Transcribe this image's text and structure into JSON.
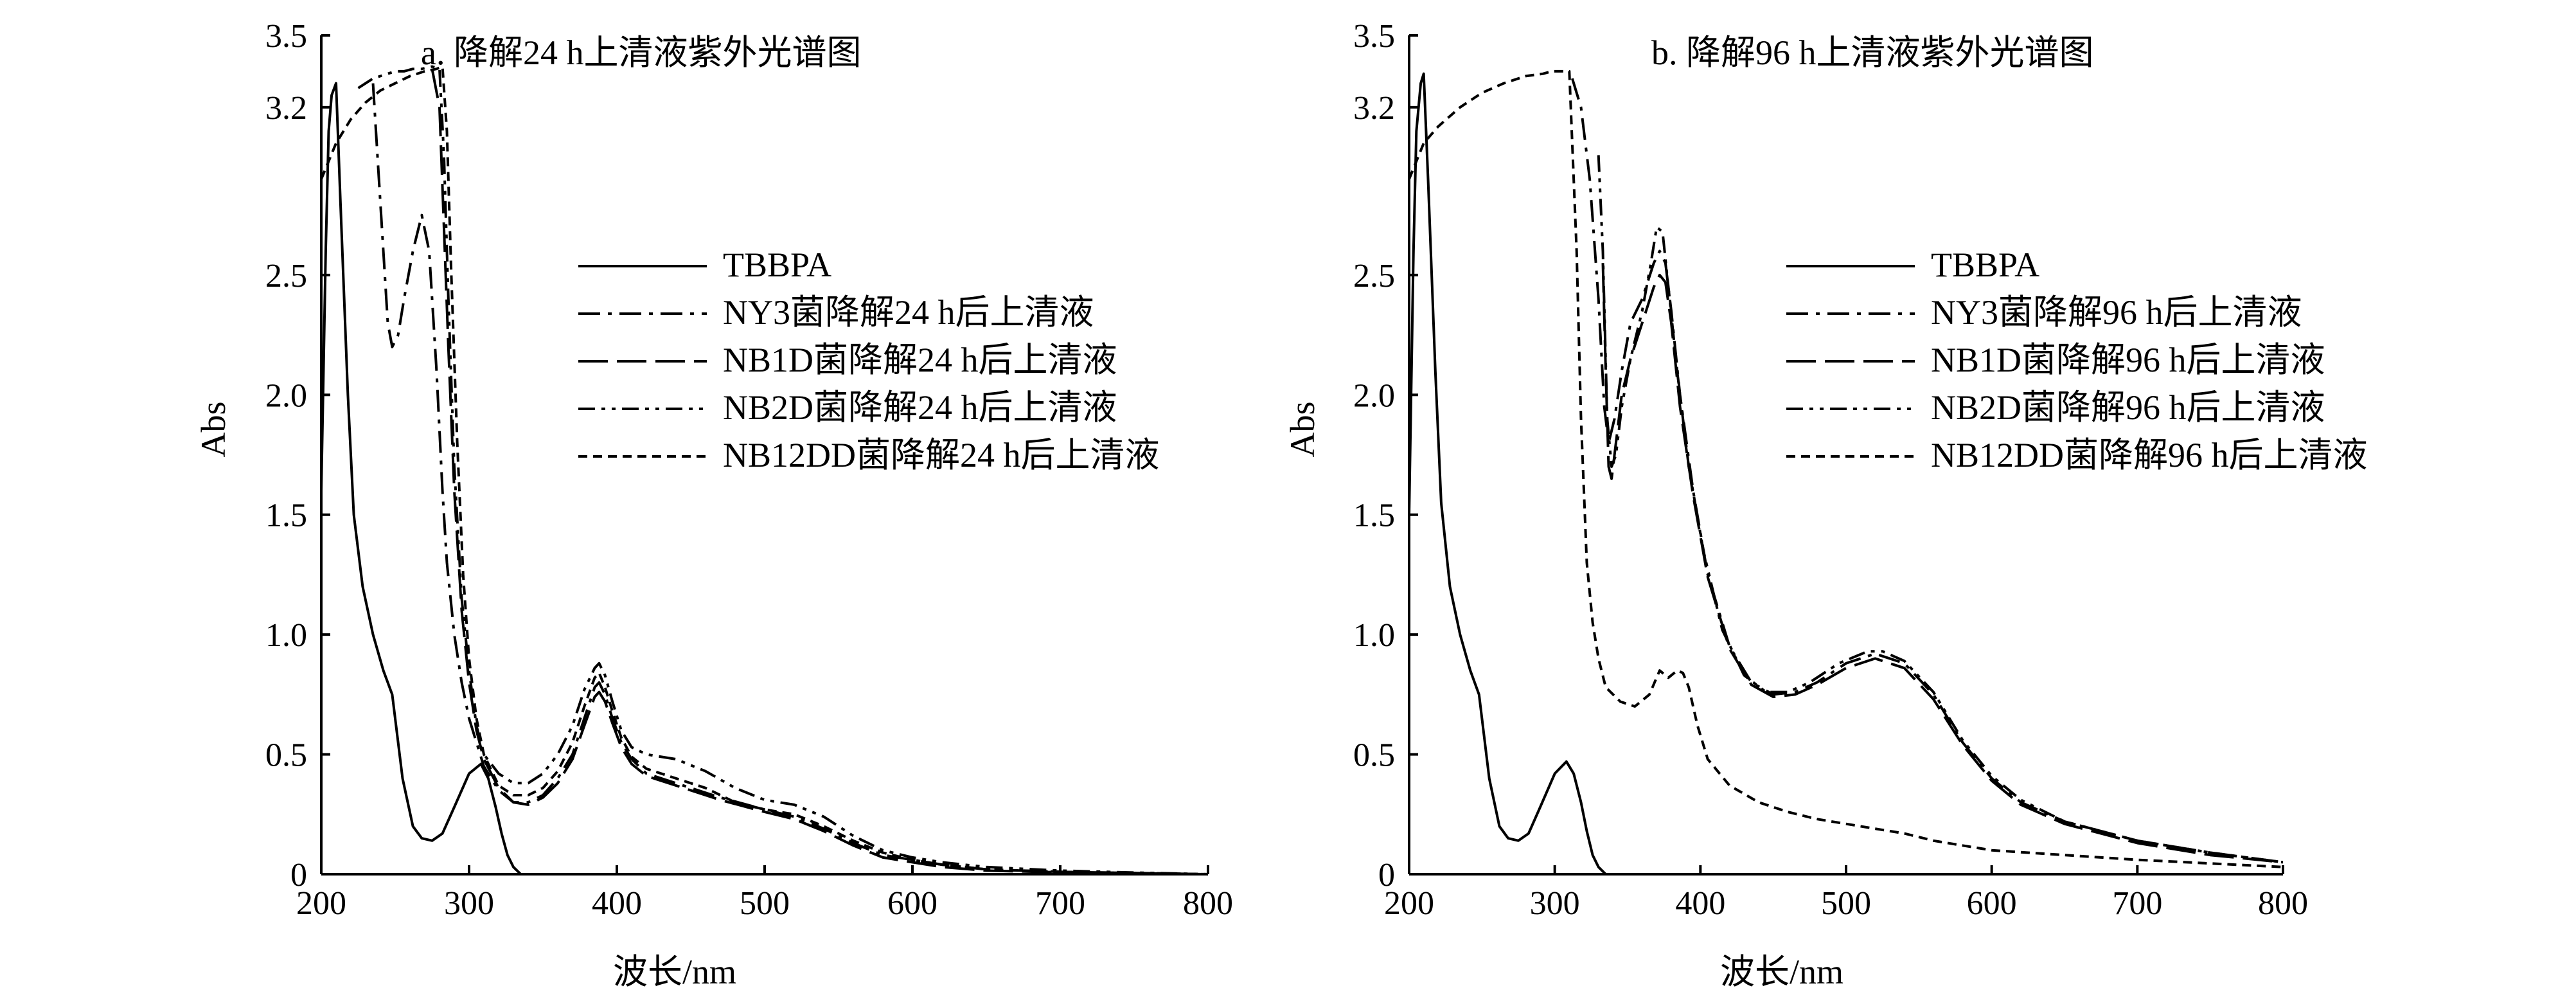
{
  "colors": {
    "line": "#000000",
    "background": "#ffffff"
  },
  "chart_data": [
    {
      "type": "line",
      "panel": "a",
      "title": "a. 降解24 h上清液紫外光谱图",
      "xlabel": "波长/nm",
      "ylabel": "Abs",
      "xlim": [
        200,
        800
      ],
      "ylim": [
        0,
        3.5
      ],
      "xticks": [
        200,
        300,
        400,
        500,
        600,
        700,
        800
      ],
      "yticks": [
        0,
        0.5,
        1.0,
        1.5,
        2.0,
        2.5,
        3.2,
        3.5
      ],
      "ytick_labels": [
        "0",
        "0.5",
        "1.0",
        "1.5",
        "2.0",
        "2.5",
        "3.2",
        "3.5"
      ],
      "legend_position": "center-right",
      "series": [
        {
          "name": "TBBPA",
          "dash": "solid",
          "x": [
            200,
            203,
            205,
            207,
            210,
            213,
            218,
            222,
            228,
            235,
            242,
            248,
            255,
            262,
            268,
            275,
            282,
            290,
            300,
            308,
            313,
            318,
            322,
            326,
            330,
            335,
            345
          ],
          "y": [
            1.6,
            2.6,
            3.1,
            3.25,
            3.3,
            2.8,
            2.0,
            1.5,
            1.2,
            1.0,
            0.85,
            0.75,
            0.4,
            0.2,
            0.15,
            0.14,
            0.17,
            0.28,
            0.42,
            0.46,
            0.4,
            0.28,
            0.17,
            0.08,
            0.03,
            0,
            0
          ]
        },
        {
          "name": "NY3菌降解24 h后上清液",
          "dash": "dashdot",
          "x": [
            235,
            240,
            245,
            248,
            252,
            256,
            262,
            268,
            273,
            278,
            282,
            285,
            290,
            295,
            300,
            305,
            310,
            320,
            330,
            340,
            350,
            360,
            370,
            378,
            385,
            388,
            392,
            397,
            403,
            410,
            420,
            430,
            440,
            450,
            470,
            500,
            520,
            540,
            560,
            580,
            600,
            620,
            650,
            700,
            750,
            800
          ],
          "y": [
            3.3,
            2.8,
            2.3,
            2.2,
            2.25,
            2.4,
            2.6,
            2.75,
            2.6,
            2.1,
            1.6,
            1.3,
            1.0,
            0.8,
            0.65,
            0.55,
            0.45,
            0.35,
            0.3,
            0.3,
            0.33,
            0.4,
            0.5,
            0.65,
            0.78,
            0.8,
            0.75,
            0.65,
            0.55,
            0.48,
            0.42,
            0.4,
            0.38,
            0.36,
            0.32,
            0.27,
            0.24,
            0.19,
            0.13,
            0.08,
            0.06,
            0.04,
            0.02,
            0.01,
            0.005,
            0
          ]
        },
        {
          "name": "NB1D菌降解24 h后上清液",
          "dash": "longdash",
          "x": [
            275,
            280,
            283,
            286,
            290,
            295,
            300,
            305,
            310,
            320,
            330,
            340,
            350,
            360,
            370,
            378,
            385,
            388,
            392,
            397,
            403,
            410,
            420,
            430,
            440,
            450,
            470,
            500,
            520,
            540,
            560,
            580,
            600,
            620,
            650,
            700,
            750,
            800
          ],
          "y": [
            3.36,
            3.2,
            2.7,
            2.2,
            1.6,
            1.1,
            0.8,
            0.6,
            0.48,
            0.36,
            0.3,
            0.29,
            0.32,
            0.38,
            0.48,
            0.62,
            0.74,
            0.76,
            0.72,
            0.63,
            0.53,
            0.46,
            0.41,
            0.39,
            0.37,
            0.35,
            0.31,
            0.26,
            0.23,
            0.18,
            0.12,
            0.07,
            0.05,
            0.03,
            0.015,
            0.008,
            0.004,
            0
          ]
        },
        {
          "name": "NB2D菌降解24 h后上清液",
          "dash": "dashdotdot",
          "x": [
            225,
            230,
            235,
            240,
            245,
            250,
            256,
            262,
            268,
            275,
            280,
            283,
            286,
            290,
            295,
            300,
            305,
            310,
            320,
            330,
            340,
            350,
            360,
            370,
            378,
            385,
            388,
            392,
            397,
            403,
            410,
            420,
            440,
            460,
            480,
            500,
            520,
            540,
            560,
            580,
            600,
            620,
            650,
            700,
            750,
            800
          ],
          "y": [
            3.28,
            3.3,
            3.32,
            3.33,
            3.34,
            3.35,
            3.35,
            3.36,
            3.36,
            3.37,
            3.36,
            3.0,
            2.4,
            1.7,
            1.15,
            0.85,
            0.62,
            0.5,
            0.42,
            0.38,
            0.38,
            0.42,
            0.5,
            0.62,
            0.77,
            0.86,
            0.88,
            0.83,
            0.72,
            0.6,
            0.53,
            0.5,
            0.48,
            0.43,
            0.36,
            0.31,
            0.29,
            0.24,
            0.16,
            0.1,
            0.07,
            0.05,
            0.03,
            0.015,
            0.007,
            0
          ]
        },
        {
          "name": "NB12DD菌降解24 h后上清液",
          "dash": "dashed",
          "x": [
            200,
            210,
            220,
            230,
            240,
            250,
            260,
            270,
            278,
            282,
            285,
            288,
            292,
            296,
            300,
            305,
            310,
            320,
            330,
            340,
            350,
            360,
            370,
            378,
            385,
            388,
            392,
            397,
            403,
            410,
            420,
            440,
            460,
            480,
            500,
            520,
            540,
            560,
            580,
            600,
            620,
            650,
            700,
            750,
            800
          ],
          "y": [
            2.9,
            3.05,
            3.15,
            3.22,
            3.27,
            3.3,
            3.33,
            3.35,
            3.36,
            3.37,
            3.1,
            2.5,
            1.8,
            1.25,
            0.9,
            0.65,
            0.5,
            0.37,
            0.33,
            0.33,
            0.36,
            0.43,
            0.55,
            0.7,
            0.82,
            0.84,
            0.78,
            0.68,
            0.57,
            0.49,
            0.44,
            0.4,
            0.36,
            0.3,
            0.27,
            0.25,
            0.2,
            0.14,
            0.09,
            0.06,
            0.04,
            0.02,
            0.01,
            0.005,
            0
          ]
        }
      ],
      "legend_labels": [
        "TBBPA",
        "NY3菌降解24 h后上清液",
        "NB1D菌降解24 h后上清液",
        "NB2D菌降解24 h后上清液",
        "NB12DD菌降解24 h后上清液"
      ]
    },
    {
      "type": "line",
      "panel": "b",
      "title": "b. 降解96 h上清液紫外光谱图",
      "xlabel": "波长/nm",
      "ylabel": "Abs",
      "xlim": [
        200,
        800
      ],
      "ylim": [
        0,
        3.5
      ],
      "xticks": [
        200,
        300,
        400,
        500,
        600,
        700,
        800
      ],
      "yticks": [
        0,
        0.5,
        1.0,
        1.5,
        2.0,
        2.5,
        3.2,
        3.5
      ],
      "ytick_labels": [
        "0",
        "0.5",
        "1.0",
        "1.5",
        "2.0",
        "2.5",
        "3.2",
        "3.5"
      ],
      "legend_position": "center-right",
      "series": [
        {
          "name": "TBBPA",
          "dash": "solid",
          "x": [
            200,
            203,
            205,
            208,
            210,
            213,
            218,
            222,
            228,
            235,
            242,
            248,
            255,
            262,
            268,
            275,
            282,
            290,
            300,
            308,
            313,
            318,
            322,
            326,
            330,
            335,
            345
          ],
          "y": [
            1.5,
            2.6,
            3.1,
            3.3,
            3.34,
            2.9,
            2.1,
            1.55,
            1.2,
            1.0,
            0.85,
            0.75,
            0.4,
            0.2,
            0.15,
            0.14,
            0.17,
            0.28,
            0.42,
            0.47,
            0.42,
            0.3,
            0.18,
            0.08,
            0.03,
            0,
            0
          ]
        },
        {
          "name": "NY3菌降解96 h后上清液",
          "dash": "dashdot",
          "x": [
            312,
            318,
            324,
            330,
            334,
            337,
            341,
            346,
            352,
            360,
            368,
            372,
            376,
            380,
            386,
            395,
            405,
            420,
            435,
            450,
            465,
            480,
            500,
            520,
            540,
            560,
            580,
            600,
            620,
            650,
            700,
            750,
            800
          ],
          "y": [
            3.32,
            3.2,
            2.9,
            2.4,
            1.95,
            1.8,
            1.9,
            2.1,
            2.3,
            2.4,
            2.55,
            2.6,
            2.55,
            2.35,
            2.0,
            1.6,
            1.25,
            0.95,
            0.8,
            0.75,
            0.76,
            0.8,
            0.88,
            0.92,
            0.88,
            0.75,
            0.55,
            0.4,
            0.3,
            0.22,
            0.14,
            0.09,
            0.05
          ]
        },
        {
          "name": "NB1D菌降解96 h后上清液",
          "dash": "longdash",
          "x": [
            333,
            335,
            337,
            339,
            342,
            346,
            352,
            360,
            368,
            372,
            376,
            380,
            386,
            395,
            405,
            420,
            435,
            450,
            465,
            480,
            500,
            520,
            540,
            560,
            580,
            600,
            620,
            650,
            700,
            750,
            800
          ],
          "y": [
            2.55,
            2.1,
            1.7,
            1.65,
            1.8,
            2.0,
            2.15,
            2.3,
            2.45,
            2.5,
            2.47,
            2.3,
            1.95,
            1.58,
            1.24,
            0.94,
            0.79,
            0.74,
            0.75,
            0.79,
            0.86,
            0.9,
            0.86,
            0.73,
            0.54,
            0.39,
            0.29,
            0.21,
            0.13,
            0.08,
            0.05
          ]
        },
        {
          "name": "NB2D菌降解96 h后上清液",
          "dash": "dashdotdot",
          "x": [
            330,
            333,
            336,
            339,
            342,
            346,
            352,
            360,
            366,
            370,
            374,
            378,
            384,
            392,
            402,
            415,
            430,
            445,
            460,
            475,
            495,
            515,
            525,
            540,
            560,
            580,
            600,
            620,
            650,
            700,
            750,
            800
          ],
          "y": [
            3.0,
            2.6,
            1.9,
            1.7,
            1.75,
            1.95,
            2.15,
            2.35,
            2.55,
            2.7,
            2.68,
            2.45,
            2.1,
            1.7,
            1.35,
            1.02,
            0.83,
            0.76,
            0.76,
            0.8,
            0.88,
            0.93,
            0.93,
            0.89,
            0.76,
            0.56,
            0.41,
            0.31,
            0.22,
            0.14,
            0.09,
            0.05
          ]
        },
        {
          "name": "NB12DD菌降解96 h后上清液",
          "dash": "dashed",
          "x": [
            200,
            210,
            220,
            235,
            250,
            265,
            280,
            292,
            298,
            303,
            310,
            315,
            318,
            320,
            322,
            326,
            330,
            335,
            345,
            355,
            365,
            372,
            378,
            384,
            388,
            392,
            398,
            405,
            420,
            440,
            460,
            480,
            500,
            520,
            540,
            560,
            580,
            600,
            650,
            700,
            750,
            800
          ],
          "y": [
            2.9,
            3.05,
            3.12,
            3.2,
            3.26,
            3.3,
            3.33,
            3.34,
            3.35,
            3.35,
            3.35,
            2.6,
            1.9,
            1.6,
            1.3,
            1.05,
            0.9,
            0.78,
            0.72,
            0.7,
            0.75,
            0.85,
            0.82,
            0.85,
            0.84,
            0.78,
            0.62,
            0.48,
            0.37,
            0.3,
            0.26,
            0.23,
            0.21,
            0.19,
            0.17,
            0.14,
            0.12,
            0.1,
            0.08,
            0.06,
            0.045,
            0.03
          ]
        }
      ],
      "legend_labels": [
        "TBBPA",
        "NY3菌降解96 h后上清液",
        "NB1D菌降解96 h后上清液",
        "NB2D菌降解96 h后上清液",
        "NB12DD菌降解96 h后上清液"
      ]
    }
  ]
}
